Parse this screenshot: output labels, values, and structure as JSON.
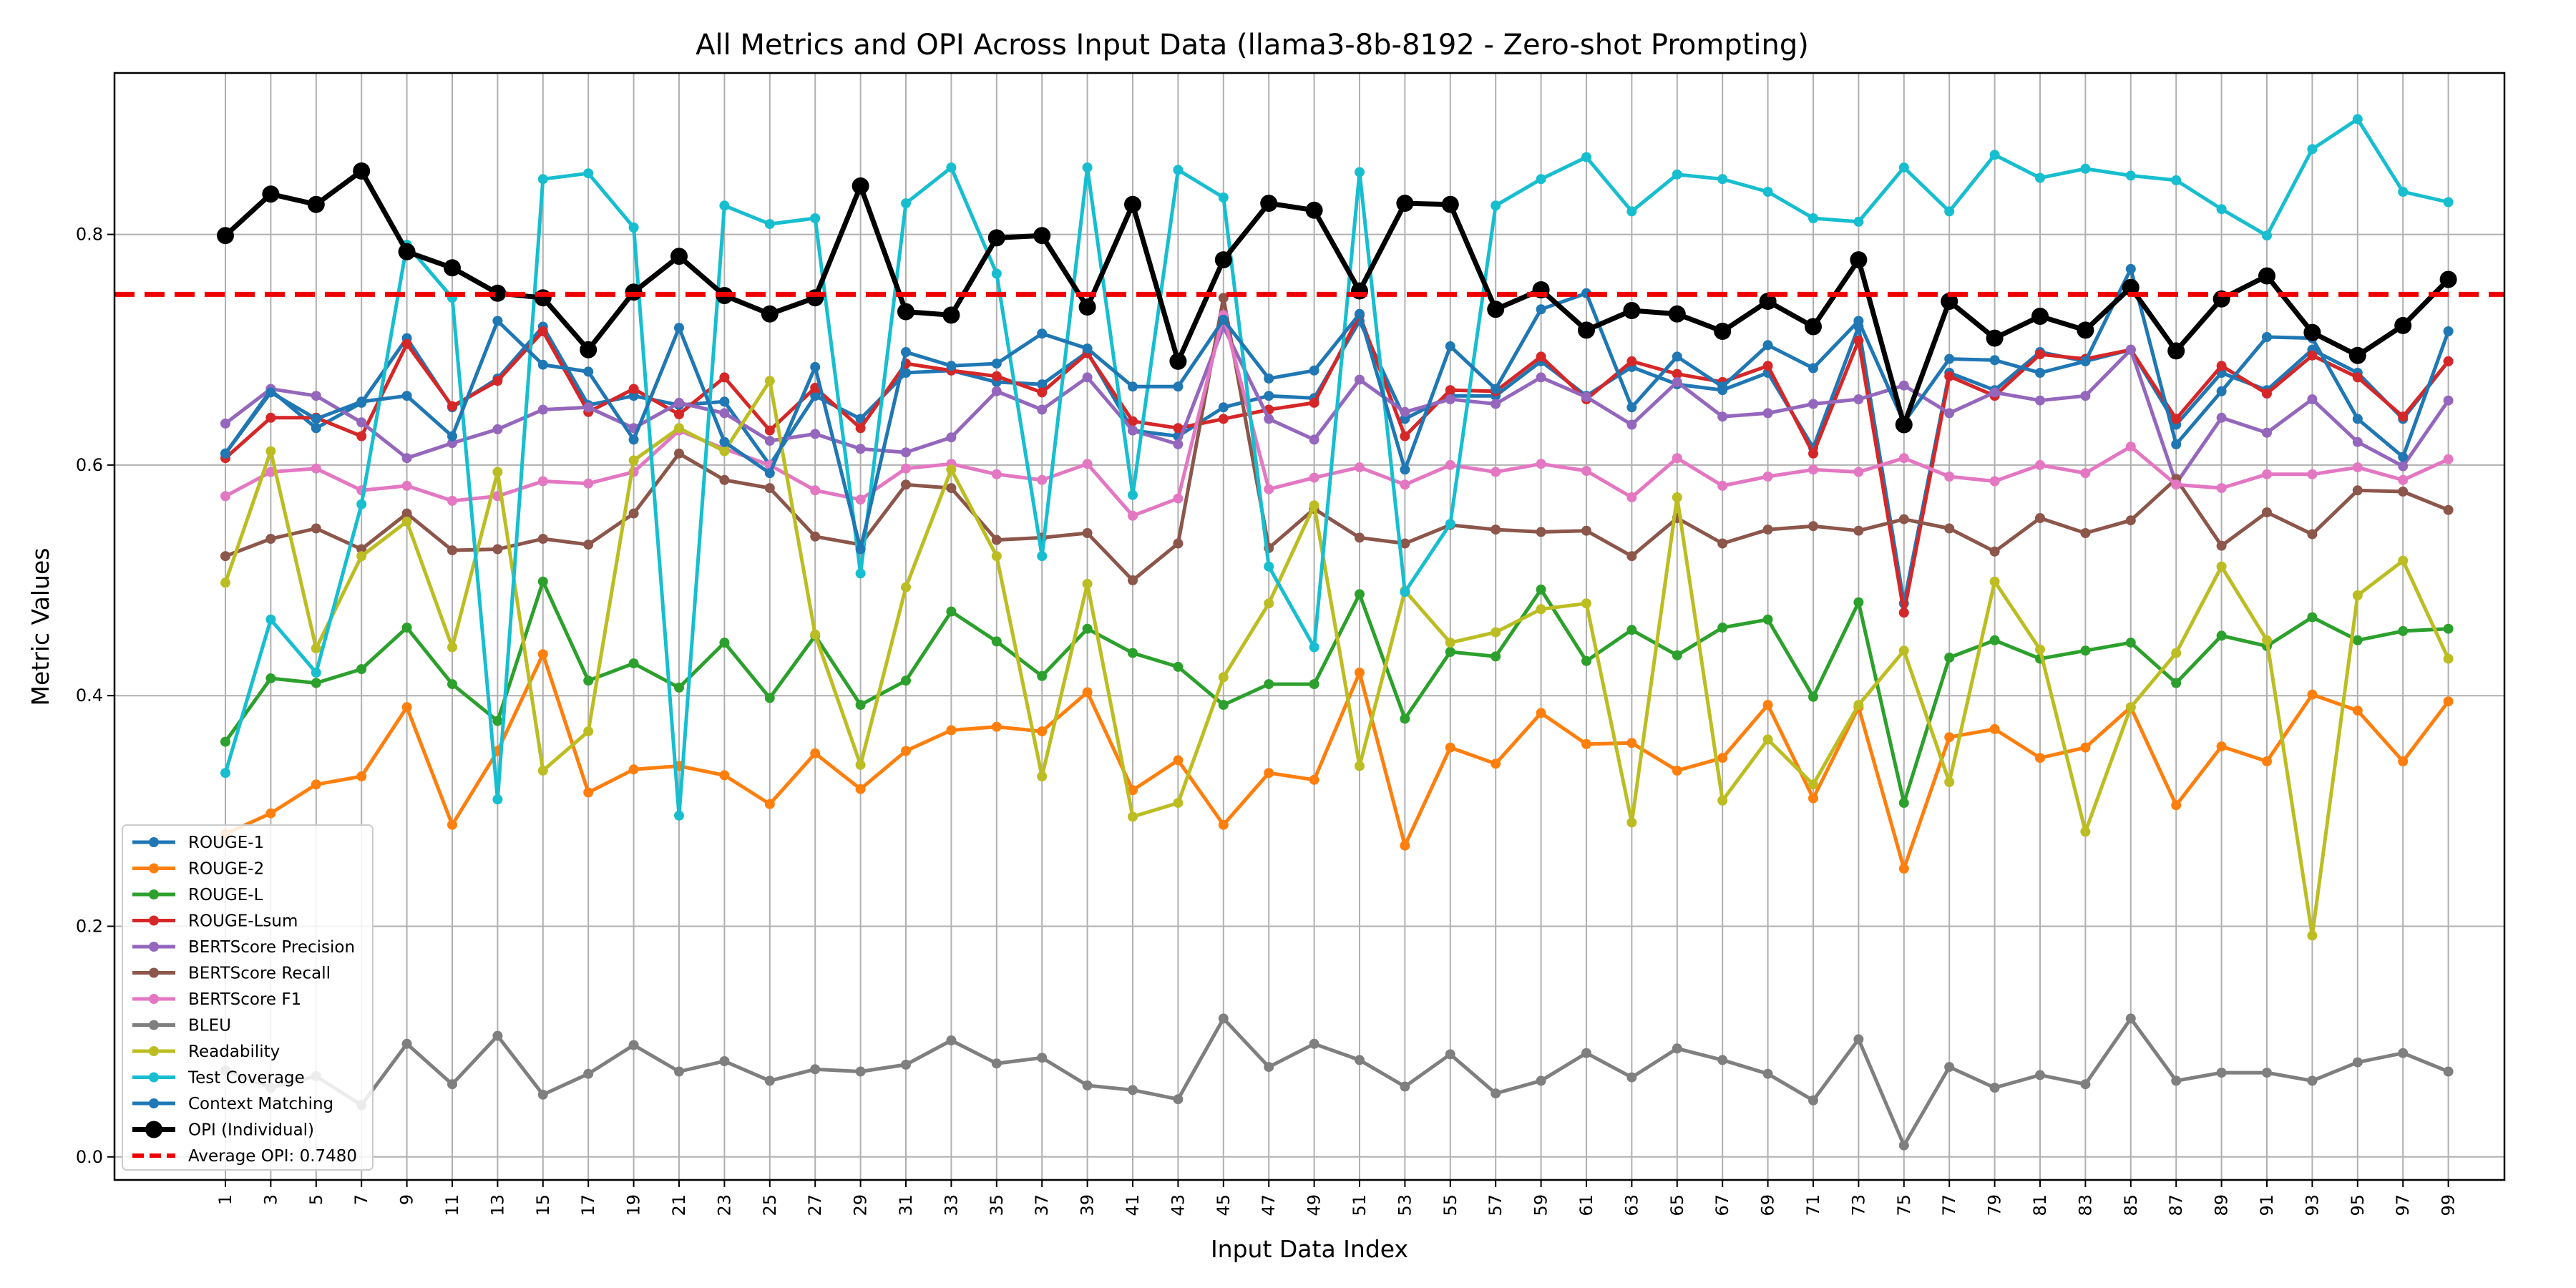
{
  "chart_data": {
    "type": "line",
    "title": "All Metrics and OPI Across Input Data (llama3-8b-8192 - Zero-shot Prompting)",
    "xlabel": "Input Data Index",
    "ylabel": "Metric Values",
    "ylim": [
      -0.02,
      0.94
    ],
    "yticks": [
      "0.0",
      "0.2",
      "0.4",
      "0.6",
      "0.8"
    ],
    "grid": true,
    "legend_position": "lower-left",
    "x": [
      1,
      3,
      5,
      7,
      9,
      11,
      13,
      15,
      17,
      19,
      21,
      23,
      25,
      27,
      29,
      31,
      33,
      35,
      37,
      39,
      41,
      43,
      45,
      47,
      49,
      51,
      53,
      55,
      57,
      59,
      61,
      63,
      65,
      67,
      69,
      71,
      73,
      75,
      77,
      79,
      81,
      83,
      85,
      87,
      89,
      91,
      93,
      95,
      97,
      99
    ],
    "xtick_labels": [
      "1",
      "3",
      "5",
      "7",
      "9",
      "11",
      "13",
      "15",
      "17",
      "19",
      "21",
      "23",
      "25",
      "27",
      "29",
      "31",
      "33",
      "35",
      "37",
      "39",
      "41",
      "43",
      "45",
      "47",
      "49",
      "51",
      "53",
      "55",
      "57",
      "59",
      "61",
      "63",
      "65",
      "67",
      "69",
      "71",
      "73",
      "75",
      "77",
      "79",
      "81",
      "83",
      "85",
      "87",
      "89",
      "91",
      "93",
      "95",
      "97",
      "99"
    ],
    "series": [
      {
        "name": "ROUGE-1",
        "color": "#1f77b4",
        "values": [
          0.61,
          0.665,
          0.632,
          0.654,
          0.71,
          0.65,
          0.675,
          0.72,
          0.652,
          0.66,
          0.652,
          0.655,
          0.6,
          0.66,
          0.64,
          0.68,
          0.682,
          0.672,
          0.67,
          0.698,
          0.63,
          0.625,
          0.65,
          0.66,
          0.658,
          0.725,
          0.64,
          0.66,
          0.66,
          0.69,
          0.66,
          0.685,
          0.67,
          0.665,
          0.68,
          0.615,
          0.72,
          0.48,
          0.68,
          0.665,
          0.698,
          0.69,
          0.7,
          0.635,
          0.68,
          0.665,
          0.7,
          0.68,
          0.64,
          0.69
        ]
      },
      {
        "name": "ROUGE-2",
        "color": "#ff7f0e",
        "values": [
          0.28,
          0.298,
          0.323,
          0.33,
          0.39,
          0.288,
          0.352,
          0.436,
          0.316,
          0.336,
          0.339,
          0.331,
          0.306,
          0.35,
          0.319,
          0.352,
          0.37,
          0.373,
          0.369,
          0.403,
          0.318,
          0.344,
          0.288,
          0.333,
          0.327,
          0.42,
          0.27,
          0.355,
          0.341,
          0.385,
          0.358,
          0.359,
          0.335,
          0.346,
          0.392,
          0.311,
          0.39,
          0.25,
          0.364,
          0.371,
          0.346,
          0.355,
          0.39,
          0.305,
          0.356,
          0.343,
          0.401,
          0.387,
          0.343,
          0.395
        ]
      },
      {
        "name": "ROUGE-L",
        "color": "#2ca02c",
        "values": [
          0.36,
          0.415,
          0.411,
          0.423,
          0.459,
          0.41,
          0.378,
          0.499,
          0.413,
          0.428,
          0.407,
          0.446,
          0.398,
          0.452,
          0.392,
          0.413,
          0.473,
          0.447,
          0.417,
          0.458,
          0.437,
          0.425,
          0.392,
          0.41,
          0.41,
          0.488,
          0.38,
          0.438,
          0.434,
          0.492,
          0.43,
          0.457,
          0.435,
          0.459,
          0.466,
          0.399,
          0.481,
          0.307,
          0.433,
          0.448,
          0.432,
          0.439,
          0.446,
          0.411,
          0.452,
          0.443,
          0.468,
          0.448,
          0.456,
          0.458
        ]
      },
      {
        "name": "ROUGE-Lsum",
        "color": "#d62728",
        "values": [
          0.606,
          0.641,
          0.641,
          0.625,
          0.705,
          0.651,
          0.673,
          0.716,
          0.646,
          0.666,
          0.644,
          0.676,
          0.63,
          0.667,
          0.632,
          0.688,
          0.682,
          0.677,
          0.663,
          0.697,
          0.638,
          0.632,
          0.64,
          0.648,
          0.654,
          0.73,
          0.625,
          0.665,
          0.664,
          0.694,
          0.657,
          0.69,
          0.679,
          0.672,
          0.686,
          0.61,
          0.708,
          0.472,
          0.677,
          0.66,
          0.696,
          0.692,
          0.7,
          0.64,
          0.686,
          0.662,
          0.695,
          0.676,
          0.642,
          0.69
        ]
      },
      {
        "name": "BERTScore Precision",
        "color": "#9467bd",
        "values": [
          0.636,
          0.666,
          0.66,
          0.637,
          0.606,
          0.619,
          0.631,
          0.648,
          0.65,
          0.632,
          0.654,
          0.645,
          0.621,
          0.627,
          0.614,
          0.611,
          0.624,
          0.664,
          0.648,
          0.676,
          0.63,
          0.618,
          0.72,
          0.64,
          0.622,
          0.674,
          0.646,
          0.657,
          0.653,
          0.676,
          0.659,
          0.635,
          0.672,
          0.642,
          0.645,
          0.653,
          0.657,
          0.669,
          0.645,
          0.663,
          0.656,
          0.66,
          0.7,
          0.584,
          0.641,
          0.628,
          0.657,
          0.62,
          0.599,
          0.656
        ]
      },
      {
        "name": "BERTScore Recall",
        "color": "#8c564b",
        "values": [
          0.521,
          0.536,
          0.545,
          0.527,
          0.558,
          0.526,
          0.527,
          0.536,
          0.531,
          0.558,
          0.61,
          0.587,
          0.58,
          0.538,
          0.531,
          0.583,
          0.58,
          0.535,
          0.537,
          0.541,
          0.5,
          0.532,
          0.745,
          0.528,
          0.562,
          0.537,
          0.532,
          0.548,
          0.544,
          0.542,
          0.543,
          0.521,
          0.554,
          0.532,
          0.544,
          0.547,
          0.543,
          0.553,
          0.545,
          0.525,
          0.554,
          0.541,
          0.552,
          0.588,
          0.53,
          0.559,
          0.54,
          0.578,
          0.577,
          0.561
        ]
      },
      {
        "name": "BERTScore F1",
        "color": "#e377c2",
        "values": [
          0.573,
          0.594,
          0.597,
          0.578,
          0.582,
          0.569,
          0.573,
          0.586,
          0.584,
          0.594,
          0.63,
          0.614,
          0.6,
          0.578,
          0.57,
          0.597,
          0.601,
          0.592,
          0.587,
          0.601,
          0.556,
          0.571,
          0.73,
          0.579,
          0.589,
          0.598,
          0.583,
          0.6,
          0.594,
          0.601,
          0.595,
          0.572,
          0.606,
          0.582,
          0.59,
          0.596,
          0.594,
          0.606,
          0.59,
          0.586,
          0.6,
          0.593,
          0.616,
          0.583,
          0.58,
          0.592,
          0.592,
          0.598,
          0.587,
          0.605
        ]
      },
      {
        "name": "BLEU",
        "color": "#7f7f7f",
        "values": [
          0.075,
          0.06,
          0.07,
          0.045,
          0.098,
          0.063,
          0.105,
          0.054,
          0.072,
          0.097,
          0.074,
          0.083,
          0.066,
          0.076,
          0.074,
          0.08,
          0.101,
          0.081,
          0.086,
          0.062,
          0.058,
          0.05,
          0.12,
          0.078,
          0.098,
          0.084,
          0.061,
          0.089,
          0.055,
          0.066,
          0.09,
          0.069,
          0.094,
          0.084,
          0.072,
          0.049,
          0.102,
          0.01,
          0.078,
          0.06,
          0.071,
          0.063,
          0.12,
          0.066,
          0.073,
          0.073,
          0.066,
          0.082,
          0.09,
          0.074
        ]
      },
      {
        "name": "Readability",
        "color": "#bcbd22",
        "values": [
          0.498,
          0.612,
          0.441,
          0.521,
          0.551,
          0.442,
          0.594,
          0.335,
          0.369,
          0.604,
          0.632,
          0.612,
          0.673,
          0.453,
          0.34,
          0.494,
          0.596,
          0.521,
          0.33,
          0.497,
          0.295,
          0.307,
          0.416,
          0.48,
          0.565,
          0.339,
          0.491,
          0.446,
          0.455,
          0.475,
          0.48,
          0.29,
          0.572,
          0.309,
          0.362,
          0.323,
          0.392,
          0.439,
          0.325,
          0.499,
          0.44,
          0.282,
          0.39,
          0.437,
          0.512,
          0.448,
          0.192,
          0.487,
          0.517,
          0.432
        ]
      },
      {
        "name": "Test Coverage",
        "color": "#17becf",
        "values": [
          0.333,
          0.466,
          0.42,
          0.566,
          0.791,
          0.745,
          0.31,
          0.848,
          0.853,
          0.806,
          0.296,
          0.825,
          0.809,
          0.814,
          0.506,
          0.827,
          0.858,
          0.766,
          0.521,
          0.858,
          0.574,
          0.856,
          0.832,
          0.512,
          0.442,
          0.854,
          0.49,
          0.549,
          0.825,
          0.848,
          0.867,
          0.82,
          0.852,
          0.848,
          0.837,
          0.814,
          0.811,
          0.858,
          0.82,
          0.869,
          0.849,
          0.857,
          0.851,
          0.847,
          0.822,
          0.799,
          0.874,
          0.9,
          0.837,
          0.828
        ]
      },
      {
        "name": "Context Matching",
        "color": "#1f77b4",
        "values": [
          0.61,
          0.663,
          0.64,
          0.655,
          0.66,
          0.625,
          0.725,
          0.687,
          0.681,
          0.622,
          0.719,
          0.62,
          0.593,
          0.685,
          0.527,
          0.698,
          0.686,
          0.688,
          0.714,
          0.701,
          0.668,
          0.668,
          0.726,
          0.675,
          0.682,
          0.731,
          0.596,
          0.703,
          0.666,
          0.735,
          0.749,
          0.65,
          0.694,
          0.668,
          0.704,
          0.684,
          0.725,
          0.637,
          0.692,
          0.691,
          0.68,
          0.69,
          0.77,
          0.618,
          0.664,
          0.711,
          0.71,
          0.64,
          0.607,
          0.716
        ]
      },
      {
        "name": "OPI (Individual)",
        "color": "#000000",
        "values": [
          0.799,
          0.835,
          0.826,
          0.855,
          0.785,
          0.771,
          0.749,
          0.745,
          0.7,
          0.75,
          0.781,
          0.747,
          0.731,
          0.745,
          0.842,
          0.733,
          0.73,
          0.797,
          0.799,
          0.737,
          0.826,
          0.69,
          0.778,
          0.827,
          0.821,
          0.751,
          0.827,
          0.826,
          0.735,
          0.752,
          0.717,
          0.734,
          0.731,
          0.716,
          0.742,
          0.72,
          0.778,
          0.635,
          0.742,
          0.71,
          0.729,
          0.717,
          0.754,
          0.699,
          0.744,
          0.764,
          0.715,
          0.695,
          0.721,
          0.761
        ]
      }
    ],
    "average_line": {
      "label": "Average OPI: 0.7480",
      "value": 0.748,
      "color": "#ee0000"
    }
  }
}
